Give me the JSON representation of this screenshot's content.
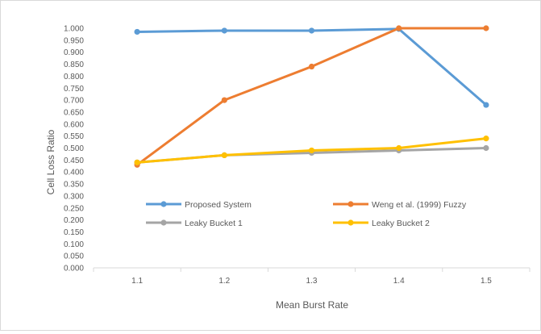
{
  "chart_data": {
    "type": "line",
    "title": "",
    "xlabel": "Mean Burst Rate",
    "ylabel": "Cell Loss Ratio",
    "categories": [
      "1.1",
      "1.2",
      "1.3",
      "1.4",
      "1.5"
    ],
    "ylim": [
      0,
      1
    ],
    "ytick_step": 0.05,
    "ytick_labels": [
      "0.000",
      "0.050",
      "0.100",
      "0.150",
      "0.200",
      "0.250",
      "0.300",
      "0.350",
      "0.400",
      "0.450",
      "0.500",
      "0.550",
      "0.600",
      "0.650",
      "0.700",
      "0.750",
      "0.800",
      "0.850",
      "0.900",
      "0.950",
      "1.000"
    ],
    "grid": false,
    "legend_position": "inside-center",
    "series": [
      {
        "name": "Proposed System",
        "color": "#5b9bd5",
        "values": [
          0.985,
          0.99,
          0.99,
          0.997,
          0.68
        ]
      },
      {
        "name": "Weng et al. (1999) Fuzzy",
        "color": "#ed7d31",
        "values": [
          0.43,
          0.7,
          0.84,
          1.0,
          1.0
        ]
      },
      {
        "name": "Leaky Bucket 1",
        "color": "#a5a5a5",
        "values": [
          0.44,
          0.47,
          0.48,
          0.49,
          0.5
        ]
      },
      {
        "name": "Leaky Bucket 2",
        "color": "#ffc000",
        "values": [
          0.44,
          0.47,
          0.49,
          0.5,
          0.54
        ]
      }
    ]
  }
}
